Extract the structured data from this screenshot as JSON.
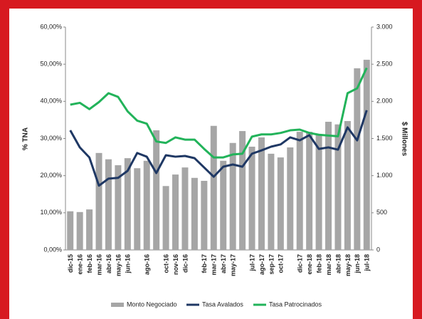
{
  "chart_data": {
    "type": "bar_line",
    "y_label": "% TNA",
    "y2_label": "$ Millones",
    "categories": [
      "dic-15",
      "ene-16",
      "feb-16",
      "mar-16",
      "abr-16",
      "may-16",
      "jun-16",
      null,
      "ago-16",
      null,
      "oct-16",
      "nov-16",
      "dic-16",
      null,
      "feb-17",
      "mar-17",
      "abr-17",
      "may-17",
      null,
      "jul-17",
      "ago-17",
      "sep-17",
      "oct-17",
      null,
      "dic-17",
      "ene-18",
      "feb-18",
      "mar-18",
      "abr-18",
      "may-18",
      "jun-18",
      "jul-18"
    ],
    "series": [
      {
        "name": "Monto Negociado",
        "color": "#a6a6a6",
        "axis": "y2",
        "type": "bar",
        "values": [
          520,
          510,
          545,
          1305,
          1220,
          1140,
          1235,
          1100,
          1200,
          1610,
          860,
          1015,
          1110,
          970,
          930,
          1670,
          1200,
          1440,
          1600,
          1390,
          1515,
          1295,
          1245,
          1380,
          1590,
          1590,
          1560,
          1725,
          1690,
          1735,
          2445,
          2560
        ]
      },
      {
        "name": "Tasa Avalados",
        "color": "#1f3864",
        "type": "line",
        "values": [
          32.2,
          27.6,
          24.9,
          17.3,
          19.2,
          19.4,
          21.3,
          26.1,
          25.1,
          20.7,
          25.5,
          25.1,
          25.3,
          24.7,
          22.2,
          19.7,
          22.4,
          23.0,
          22.4,
          25.9,
          26.8,
          27.8,
          28.4,
          30.3,
          29.5,
          30.9,
          27.2,
          27.6,
          27.0,
          33.0,
          29.5,
          37.6
        ]
      },
      {
        "name": "Tasa Patrocinados",
        "color": "#22b35a",
        "type": "line",
        "values": [
          39.1,
          39.6,
          37.9,
          39.8,
          42.2,
          41.2,
          37.3,
          34.8,
          34.0,
          29.2,
          28.8,
          30.3,
          29.7,
          29.7,
          27.2,
          24.9,
          24.9,
          25.7,
          25.9,
          30.5,
          31.1,
          31.1,
          31.5,
          32.2,
          32.4,
          31.5,
          31.0,
          30.8,
          30.6,
          42.2,
          43.5,
          49.0
        ]
      }
    ],
    "ylim": [
      0,
      60
    ],
    "yticks": [
      {
        "value": 0,
        "label": "0,00%"
      },
      {
        "value": 10,
        "label": "10,00%"
      },
      {
        "value": 20,
        "label": "20,00%"
      },
      {
        "value": 30,
        "label": "30,00%"
      },
      {
        "value": 40,
        "label": "40,00%"
      },
      {
        "value": 50,
        "label": "50,00%"
      },
      {
        "value": 60,
        "label": "60,00%"
      }
    ],
    "y2lim": [
      0,
      3000
    ],
    "y2ticks": [
      0,
      500,
      {
        "value": 1000,
        "label": "1.000"
      },
      {
        "value": 1500,
        "label": "1.500"
      },
      {
        "value": 2000,
        "label": "2.000"
      },
      {
        "value": 2500,
        "label": "2.500"
      },
      {
        "value": 3000,
        "label": "3.000"
      }
    ],
    "legend": "bottom"
  }
}
